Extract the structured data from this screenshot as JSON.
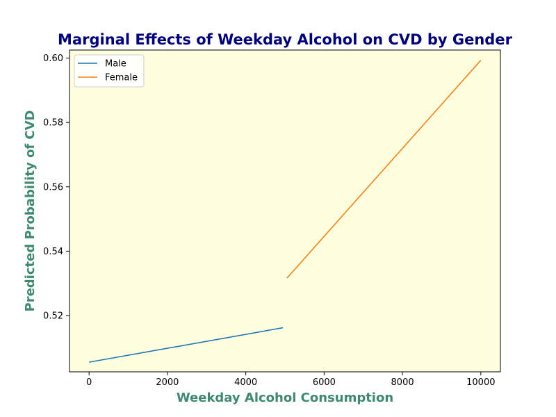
{
  "chart_data": {
    "type": "line",
    "title": "Marginal Effects of Weekday Alcohol on CVD by Gender",
    "xlabel": "Weekday Alcohol Consumption",
    "ylabel": "Predicted Probability of CVD",
    "xlim": [
      -500,
      10500
    ],
    "ylim": [
      0.5025,
      0.6025
    ],
    "x_ticks": [
      0,
      2000,
      4000,
      6000,
      8000,
      10000
    ],
    "x_tick_labels": [
      "0",
      "2000",
      "4000",
      "6000",
      "8000",
      "10000"
    ],
    "y_ticks": [
      0.52,
      0.54,
      0.56,
      0.58,
      0.6
    ],
    "y_tick_labels": [
      "0.52",
      "0.54",
      "0.56",
      "0.58",
      "0.60"
    ],
    "grid": false,
    "legend_position": "upper-left",
    "plot_background": "#ffffe0",
    "title_color": "#000080",
    "axis_label_color": "#3c8a72",
    "series": [
      {
        "name": "Male",
        "color": "#1f77b4",
        "x": [
          0,
          4950
        ],
        "y": [
          0.5055,
          0.5162
        ]
      },
      {
        "name": "Female",
        "color": "#ff7f0e",
        "x": [
          5050,
          10000
        ],
        "y": [
          0.5316,
          0.5993
        ]
      }
    ]
  }
}
